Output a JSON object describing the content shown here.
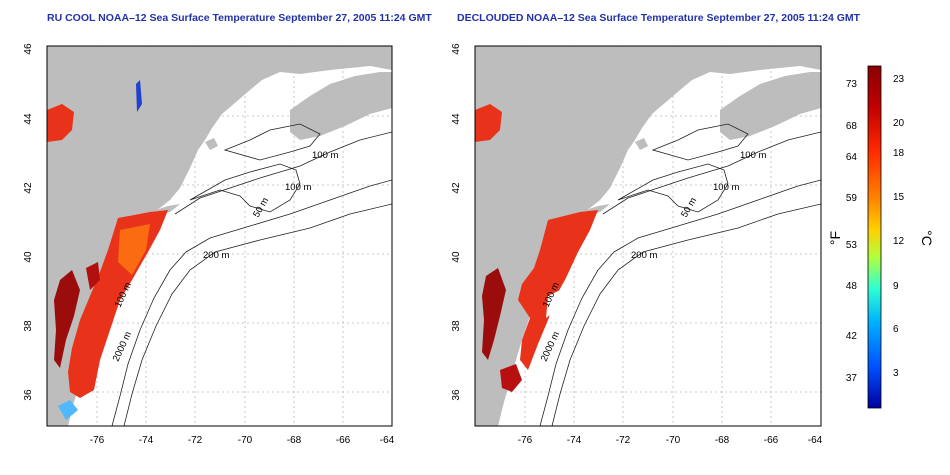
{
  "panels": [
    {
      "title": "RU COOL NOAA–12 Sea Surface Temperature September 27, 2005 11:24 GMT",
      "lon_labels": [
        "-76",
        "-74",
        "-72",
        "-70",
        "-68",
        "-66",
        "-64"
      ],
      "lat_labels": [
        "36",
        "38",
        "40",
        "42",
        "44",
        "46"
      ],
      "contour_labels": [
        "100 m",
        "100 m",
        "50 m",
        "200 m",
        "100 m",
        "2000 m"
      ]
    },
    {
      "title": "DECLOUDED NOAA–12 Sea Surface Temperature September 27, 2005 11:24 GMT",
      "lon_labels": [
        "-76",
        "-74",
        "-72",
        "-70",
        "-68",
        "-66",
        "-64"
      ],
      "lat_labels": [
        "36",
        "38",
        "40",
        "42",
        "44",
        "46"
      ],
      "contour_labels": [
        "100 m",
        "100 m",
        "50 m",
        "200 m",
        "100 m",
        "2000 m"
      ]
    }
  ],
  "colorbar": {
    "fahrenheit_labels": [
      "73",
      "68",
      "64",
      "59",
      "53",
      "48",
      "42",
      "37"
    ],
    "celsius_labels": [
      "23",
      "20",
      "18",
      "15",
      "12",
      "9",
      "6",
      "3"
    ],
    "fahrenheit_unit": "°F",
    "celsius_unit": "°C",
    "colors": [
      "#8b0000",
      "#c00000",
      "#ff2a00",
      "#ff7f00",
      "#ffd000",
      "#b0ff40",
      "#30ffd0",
      "#00b0ff",
      "#0050ff",
      "#0000a0"
    ]
  },
  "map_colors": {
    "land": "#bdbdbd",
    "ocean": "#ffffff",
    "grid": "#b8b8b8",
    "contour": "#222222"
  }
}
